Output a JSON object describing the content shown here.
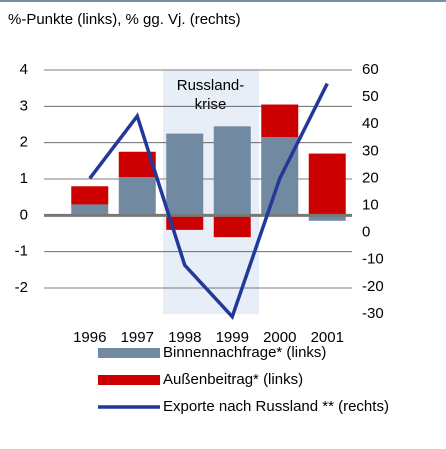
{
  "chart_data": {
    "type": "bar_line",
    "subtitle": "%-Punkte (links), % gg. Vj. (rechts)",
    "annotation": [
      "Russland-",
      "krise"
    ],
    "categories": [
      "1996",
      "1997",
      "1998",
      "1999",
      "2000",
      "2001"
    ],
    "series": [
      {
        "name": "Binnennachfrage* (links)",
        "color": "#7189a1",
        "type": "bar",
        "values": [
          0.3,
          1.05,
          2.25,
          2.45,
          2.15,
          -0.15
        ]
      },
      {
        "name": "Außenbeitrag* (links)",
        "color": "#cc0000",
        "type": "bar",
        "values": [
          0.5,
          0.7,
          -0.4,
          -0.6,
          0.9,
          1.7
        ]
      },
      {
        "name": "Exporte nach Russland ** (rechts)",
        "color": "#23399a",
        "type": "line",
        "axis": "y2",
        "values": [
          20,
          43,
          -12,
          -31,
          20,
          55
        ]
      }
    ],
    "ylim": [
      -2,
      4
    ],
    "yticks": [
      -2,
      -1,
      0,
      1,
      2,
      3,
      4
    ],
    "y2lim": [
      -30,
      60
    ],
    "y2ticks": [
      -30,
      -20,
      -10,
      0,
      10,
      20,
      30,
      40,
      50,
      60
    ],
    "grid": true
  }
}
